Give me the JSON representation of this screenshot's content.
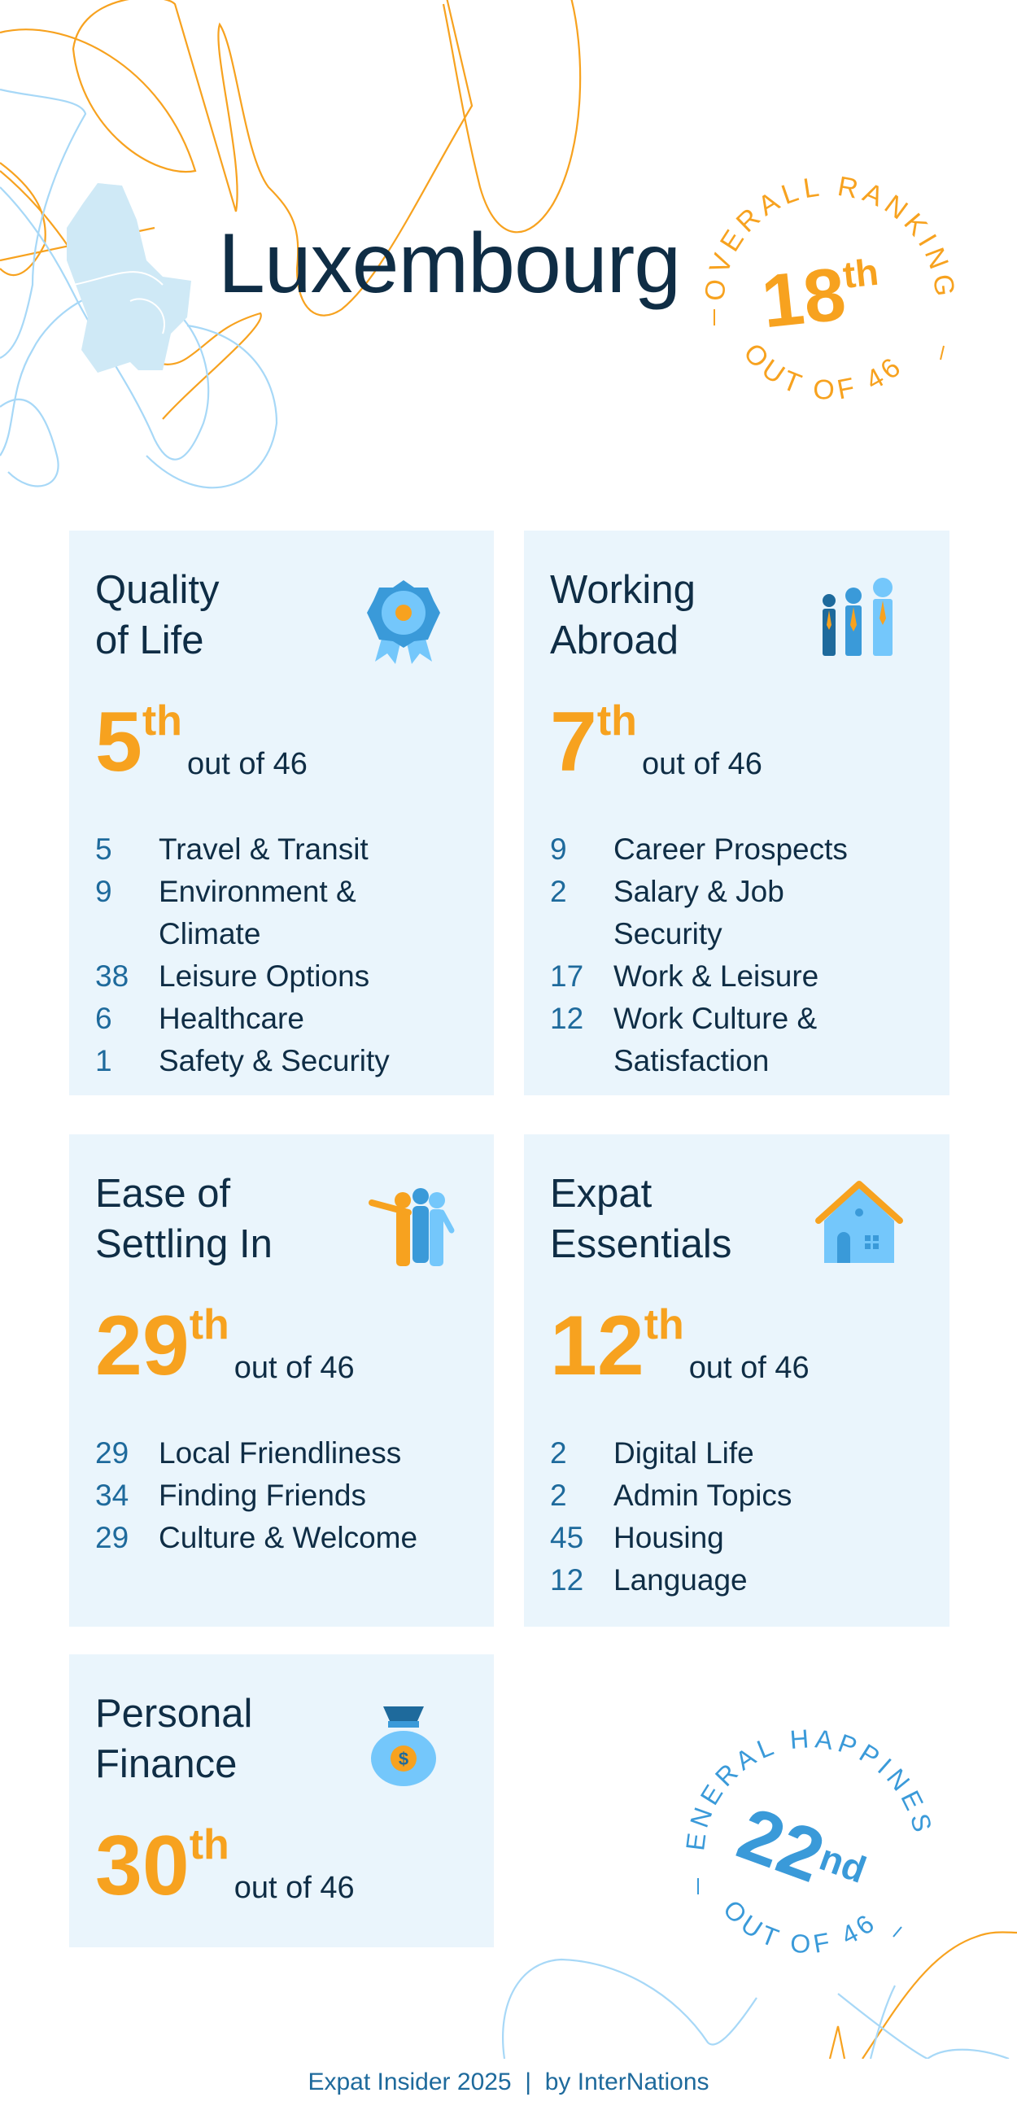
{
  "country": "Luxembourg",
  "overall": {
    "label_top": "OVERALL RANKING",
    "rank": "18",
    "suffix": "th",
    "label_bottom": "OUT OF 46"
  },
  "happiness": {
    "label_top": "GENERAL HAPPINESS",
    "rank": "22",
    "suffix": "nd",
    "label_bottom": "OUT OF 46"
  },
  "colors": {
    "orange": "#f7a21f",
    "blue": "#3a9ad9",
    "light_blue": "#74c7fb",
    "card_bg": "#eaf5fc",
    "dark": "#0f2d45",
    "number_blue": "#1e6a9c"
  },
  "cards": [
    {
      "title_1": "Quality",
      "title_2": "of Life",
      "icon": "award-rosette-icon",
      "rank": "5",
      "suffix": "th",
      "out_of": "out of 46",
      "items": [
        {
          "n": "5",
          "t": "Travel & Transit"
        },
        {
          "n": "9",
          "t": "Environment & Climate"
        },
        {
          "n": "38",
          "t": "Leisure Options"
        },
        {
          "n": "6",
          "t": "Healthcare"
        },
        {
          "n": "1",
          "t": "Safety & Security"
        }
      ]
    },
    {
      "title_1": "Working",
      "title_2": "Abroad",
      "icon": "business-people-icon",
      "rank": "7",
      "suffix": "th",
      "out_of": "out of 46",
      "items": [
        {
          "n": "9",
          "t": "Career Prospects"
        },
        {
          "n": "2",
          "t": "Salary & Job Security"
        },
        {
          "n": "17",
          "t": "Work & Leisure"
        },
        {
          "n": "12",
          "t": "Work Culture & Satisfaction"
        }
      ]
    },
    {
      "title_1": "Ease of",
      "title_2": "Settling In",
      "icon": "group-of-people-icon",
      "rank": "29",
      "suffix": "th",
      "out_of": "out of 46",
      "items": [
        {
          "n": "29",
          "t": "Local Friendliness"
        },
        {
          "n": "34",
          "t": "Finding Friends"
        },
        {
          "n": "29",
          "t": "Culture & Welcome"
        }
      ]
    },
    {
      "title_1": "Expat",
      "title_2": "Essentials",
      "icon": "house-icon",
      "rank": "12",
      "suffix": "th",
      "out_of": "out of 46",
      "items": [
        {
          "n": "2",
          "t": "Digital Life"
        },
        {
          "n": "2",
          "t": "Admin Topics"
        },
        {
          "n": "45",
          "t": "Housing"
        },
        {
          "n": "12",
          "t": "Language"
        }
      ]
    },
    {
      "title_1": "Personal",
      "title_2": "Finance",
      "icon": "money-bag-icon",
      "rank": "30",
      "suffix": "th",
      "out_of": "out of 46",
      "items": []
    }
  ],
  "footer": "Expat Insider 2025  |  by InterNations"
}
